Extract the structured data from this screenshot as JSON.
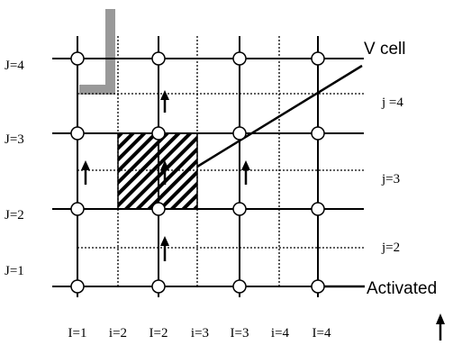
{
  "labels": {
    "J": [
      "J=1",
      "J=2",
      "J=3",
      "J=4"
    ],
    "j": [
      "j=2",
      "j=3",
      "j =4"
    ],
    "I": [
      "I=1",
      "I=2",
      "I=3",
      "I=4"
    ],
    "i": [
      "i=2",
      "i=3",
      "i=4"
    ],
    "v_cell": "V cell",
    "activated": "Activated"
  },
  "colors": {
    "line": "#000000",
    "wall": "#999999",
    "hatch": "#000000"
  }
}
